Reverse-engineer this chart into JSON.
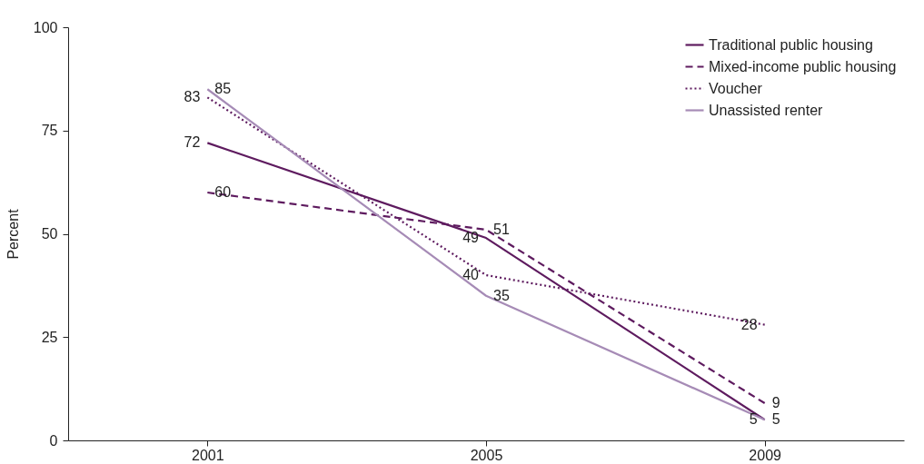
{
  "chart_data": {
    "type": "line",
    "ylabel": "Percent",
    "categories": [
      "2001",
      "2005",
      "2009"
    ],
    "series": [
      {
        "name": "Traditional public housing",
        "color": "#5e1b5f",
        "line_style": "solid",
        "values": [
          72,
          49,
          5
        ]
      },
      {
        "name": "Mixed-income public housing",
        "color": "#5e1b5f",
        "line_style": "dashed",
        "values": [
          60,
          51,
          9
        ]
      },
      {
        "name": "Voucher",
        "color": "#5e1b5f",
        "line_style": "dotted",
        "values": [
          83,
          40,
          28
        ]
      },
      {
        "name": "Unassisted renter",
        "color": "#a68bb6",
        "line_style": "solid",
        "values": [
          85,
          35,
          5
        ]
      }
    ],
    "ylim": [
      0,
      100
    ],
    "yticks": [
      0,
      25,
      50,
      75,
      100
    ],
    "grid": false,
    "legend": "top right",
    "data_labels": true,
    "marker": "none"
  }
}
